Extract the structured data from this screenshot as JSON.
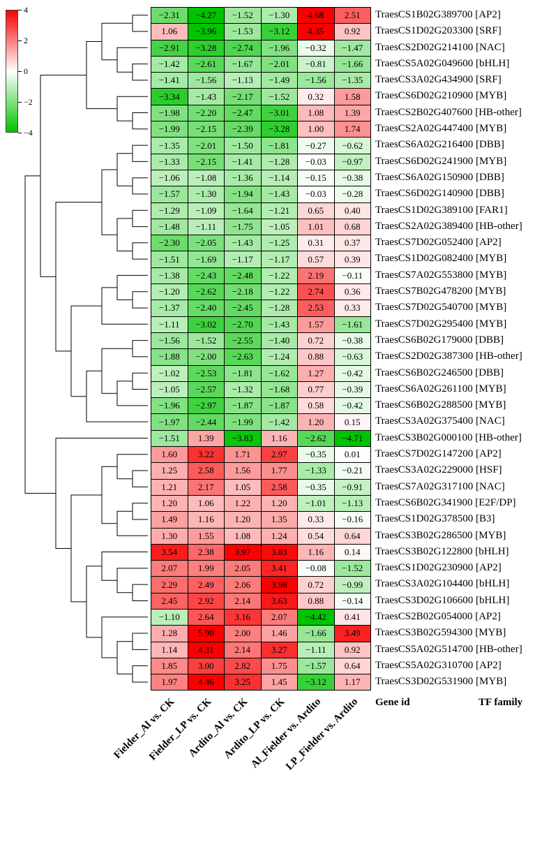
{
  "chart_data": {
    "type": "heatmap",
    "columns": [
      "Fielder_Al vs. CK",
      "Fielder_LP vs. CK",
      "Ardito_Al vs. CK",
      "Ardito_LP vs. CK",
      "Al_Fielder vs. Ardito",
      "LP_Fielder vs. Ardito"
    ],
    "rows": [
      {
        "gene": "TraesCS1B02G389700",
        "family": "AP2",
        "values": [
          -2.31,
          -4.27,
          -1.52,
          -1.3,
          4.68,
          2.51
        ]
      },
      {
        "gene": "TraesCS1D02G203300",
        "family": "SRF",
        "values": [
          1.06,
          -3.96,
          -1.53,
          -3.12,
          4.35,
          0.92
        ]
      },
      {
        "gene": "TraesCS2D02G214100",
        "family": "NAC",
        "values": [
          -2.91,
          -3.28,
          -2.74,
          -1.96,
          -0.32,
          -1.47
        ]
      },
      {
        "gene": "TraesCS5A02G049600",
        "family": "bHLH",
        "values": [
          -1.42,
          -2.61,
          -1.67,
          -2.01,
          -0.81,
          -1.66
        ]
      },
      {
        "gene": "TraesCS3A02G434900",
        "family": "SRF",
        "values": [
          -1.41,
          -1.56,
          -1.13,
          -1.49,
          -1.56,
          -1.35
        ]
      },
      {
        "gene": "TraesCS6D02G210900",
        "family": "MYB",
        "values": [
          -3.34,
          -1.43,
          -2.17,
          -1.52,
          0.32,
          1.58
        ]
      },
      {
        "gene": "TraesCS2B02G407600",
        "family": "HB-other",
        "values": [
          -1.98,
          -2.2,
          -2.47,
          -3.01,
          1.08,
          1.39
        ]
      },
      {
        "gene": "TraesCS2A02G447400",
        "family": "MYB",
        "values": [
          -1.99,
          -2.15,
          -2.39,
          -3.28,
          1.0,
          1.74
        ]
      },
      {
        "gene": "TraesCS6A02G216400",
        "family": "DBB",
        "values": [
          -1.35,
          -2.01,
          -1.5,
          -1.81,
          -0.27,
          -0.62
        ]
      },
      {
        "gene": "TraesCS6D02G241900",
        "family": "MYB",
        "values": [
          -1.33,
          -2.15,
          -1.41,
          -1.28,
          -0.03,
          -0.97
        ]
      },
      {
        "gene": "TraesCS6A02G150900",
        "family": "DBB",
        "values": [
          -1.06,
          -1.08,
          -1.36,
          -1.14,
          -0.15,
          -0.38
        ]
      },
      {
        "gene": "TraesCS6D02G140900",
        "family": "DBB",
        "values": [
          -1.57,
          -1.3,
          -1.94,
          -1.43,
          -0.03,
          -0.28
        ]
      },
      {
        "gene": "TraesCS1D02G389100",
        "family": "FAR1",
        "values": [
          -1.29,
          -1.09,
          -1.64,
          -1.21,
          0.65,
          0.4
        ]
      },
      {
        "gene": "TraesCS2A02G389400",
        "family": "HB-other",
        "values": [
          -1.48,
          -1.11,
          -1.75,
          -1.05,
          1.01,
          0.68
        ]
      },
      {
        "gene": "TraesCS7D02G052400",
        "family": "AP2",
        "values": [
          -2.3,
          -2.05,
          -1.43,
          -1.25,
          0.31,
          0.37
        ]
      },
      {
        "gene": "TraesCS1D02G082400",
        "family": "MYB",
        "values": [
          -1.51,
          -1.69,
          -1.17,
          -1.17,
          0.57,
          0.39
        ]
      },
      {
        "gene": "TraesCS7A02G553800",
        "family": "MYB",
        "values": [
          -1.38,
          -2.43,
          -2.48,
          -1.22,
          2.19,
          -0.11
        ]
      },
      {
        "gene": "TraesCS7B02G478200",
        "family": "MYB",
        "values": [
          -1.2,
          -2.62,
          -2.18,
          -1.22,
          2.74,
          0.36
        ]
      },
      {
        "gene": "TraesCS7D02G540700",
        "family": "MYB",
        "values": [
          -1.37,
          -2.4,
          -2.45,
          -1.28,
          2.53,
          0.33
        ]
      },
      {
        "gene": "TraesCS7D02G295400",
        "family": "MYB",
        "values": [
          -1.11,
          -3.02,
          -2.7,
          -1.43,
          1.57,
          -1.61
        ]
      },
      {
        "gene": "TraesCS6B02G179000",
        "family": "DBB",
        "values": [
          -1.56,
          -1.52,
          -2.55,
          -1.4,
          0.72,
          -0.38
        ]
      },
      {
        "gene": "TraesCS2D02G387300",
        "family": "HB-other",
        "values": [
          -1.88,
          -2.0,
          -2.63,
          -1.24,
          0.88,
          -0.63
        ]
      },
      {
        "gene": "TraesCS6B02G246500",
        "family": "DBB",
        "values": [
          -1.02,
          -2.53,
          -1.81,
          -1.62,
          1.27,
          -0.42
        ]
      },
      {
        "gene": "TraesCS6A02G261100",
        "family": "MYB",
        "values": [
          -1.05,
          -2.57,
          -1.32,
          -1.68,
          0.77,
          -0.39
        ]
      },
      {
        "gene": "TraesCS6B02G288500",
        "family": "MYB",
        "values": [
          -1.96,
          -2.97,
          -1.87,
          -1.87,
          0.58,
          -0.42
        ]
      },
      {
        "gene": "TraesCS3A02G375400",
        "family": "NAC",
        "values": [
          -1.97,
          -2.44,
          -1.99,
          -1.42,
          1.2,
          0.15
        ]
      },
      {
        "gene": "TraesCS3B02G000100",
        "family": "HB-other",
        "values": [
          -1.51,
          1.39,
          -3.83,
          1.16,
          -2.62,
          -4.71
        ]
      },
      {
        "gene": "TraesCS7D02G147200",
        "family": "AP2",
        "values": [
          1.6,
          3.22,
          1.71,
          2.97,
          -0.35,
          0.01
        ]
      },
      {
        "gene": "TraesCS3A02G229000",
        "family": "HSF",
        "values": [
          1.25,
          2.58,
          1.56,
          1.77,
          -1.33,
          -0.21
        ]
      },
      {
        "gene": "TraesCS7A02G317100",
        "family": "NAC",
        "values": [
          1.21,
          2.17,
          1.05,
          2.58,
          -0.35,
          -0.91
        ]
      },
      {
        "gene": "TraesCS6B02G341900",
        "family": "E2F/DP",
        "values": [
          1.2,
          1.06,
          1.22,
          1.2,
          -1.01,
          -1.13
        ]
      },
      {
        "gene": "TraesCS1D02G378500",
        "family": "B3",
        "values": [
          1.49,
          1.16,
          1.2,
          1.35,
          0.33,
          -0.16
        ]
      },
      {
        "gene": "TraesCS3B02G286500",
        "family": "MYB",
        "values": [
          1.3,
          1.55,
          1.08,
          1.24,
          0.54,
          0.64
        ]
      },
      {
        "gene": "TraesCS3B02G122800",
        "family": "bHLH",
        "values": [
          3.54,
          2.38,
          3.97,
          3.83,
          1.16,
          0.14
        ]
      },
      {
        "gene": "TraesCS1D02G230900",
        "family": "AP2",
        "values": [
          2.07,
          1.99,
          2.05,
          3.41,
          -0.08,
          -1.52
        ]
      },
      {
        "gene": "TraesCS3A02G104400",
        "family": "bHLH",
        "values": [
          2.29,
          2.49,
          2.06,
          3.98,
          0.72,
          -0.99
        ]
      },
      {
        "gene": "TraesCS3D02G106600",
        "family": "bHLH",
        "values": [
          2.45,
          2.92,
          2.14,
          3.63,
          0.88,
          -0.14
        ]
      },
      {
        "gene": "TraesCS2B02G054000",
        "family": "AP2",
        "values": [
          -1.1,
          2.64,
          3.16,
          2.07,
          -4.42,
          0.41
        ]
      },
      {
        "gene": "TraesCS3B02G594300",
        "family": "MYB",
        "values": [
          1.28,
          5.9,
          2.0,
          1.46,
          -1.66,
          3.49
        ]
      },
      {
        "gene": "TraesCS5A02G514700",
        "family": "HB-other",
        "values": [
          1.14,
          4.31,
          2.14,
          3.27,
          -1.11,
          0.92
        ]
      },
      {
        "gene": "TraesCS5A02G310700",
        "family": "AP2",
        "values": [
          1.85,
          3.0,
          2.82,
          1.75,
          -1.57,
          0.64
        ]
      },
      {
        "gene": "TraesCS3D02G531900",
        "family": "MYB",
        "values": [
          1.97,
          4.46,
          3.25,
          1.45,
          -3.12,
          1.17
        ]
      }
    ],
    "legend": {
      "ticks": [
        4,
        2,
        0,
        -2,
        -4
      ],
      "max": 4,
      "min": -4,
      "color_positive": "#fa0000",
      "color_zero": "#ffffff",
      "color_negative": "#00c300"
    },
    "footer": {
      "gene_id_label": "Gene id",
      "tf_family_label": "TF family"
    },
    "dendrogram": [
      [
        [
          [
            [
              0,
              1
            ],
            [
              2,
              [
                3,
                4
              ]
            ]
          ],
          [
            5,
            [
              6,
              7
            ]
          ]
        ],
        [
          [
            [
              [
                8,
                9
              ],
              [
                10,
                11
              ]
            ],
            [
              [
                12,
                13
              ],
              [
                14,
                15
              ]
            ]
          ],
          [
            [
              [
                16,
                [
                  17,
                  18
                ]
              ],
              19
            ],
            [
              [
                [
                  20,
                  21
                ],
                [
                  [
                    22,
                    23
                  ],
                  24
                ]
              ],
              25
            ]
          ]
        ]
      ],
      [
        26,
        [
          [
            [
              27,
              [
                28,
                29
              ]
            ],
            [
              [
                30,
                31
              ],
              32
            ]
          ],
          [
            [
              33,
              [
                34,
                [
                  35,
                  36
                ]
              ]
            ],
            [
              37,
              [
                [
                  38,
                  39
                ],
                [
                  40,
                  41
                ]
              ]
            ]
          ]
        ]
      ]
    ]
  }
}
